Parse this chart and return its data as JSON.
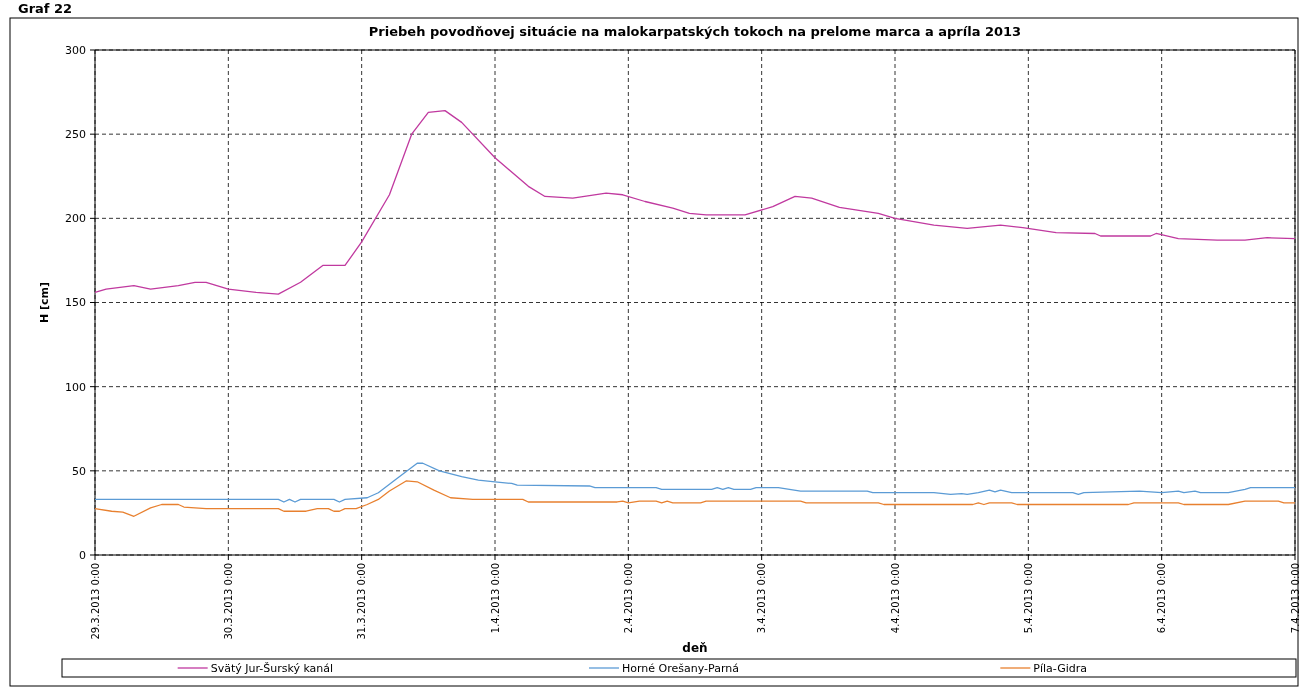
{
  "chart_data": {
    "type": "line",
    "title": "Priebeh povodňovej situácie na malokarpatských tokoch na prelome marca a apríla 2013",
    "xlabel": "deň",
    "ylabel": "H [cm]",
    "annotations": [
      "Graf 22"
    ],
    "xlim": [
      "2013-03-29T00:00",
      "2013-04-07T00:00"
    ],
    "ylim": [
      0,
      300
    ],
    "yticks": [
      0,
      50,
      100,
      150,
      200,
      250,
      300
    ],
    "xticks": [
      {
        "value": "2013-03-29T00:00",
        "label": "29.3.2013 0:00"
      },
      {
        "value": "2013-03-30T00:00",
        "label": "30.3.2013 0:00"
      },
      {
        "value": "2013-03-31T00:00",
        "label": "31.3.2013 0:00"
      },
      {
        "value": "2013-04-01T00:00",
        "label": "1.4.2013 0:00"
      },
      {
        "value": "2013-04-02T00:00",
        "label": "2.4.2013 0:00"
      },
      {
        "value": "2013-04-03T00:00",
        "label": "3.4.2013 0:00"
      },
      {
        "value": "2013-04-04T00:00",
        "label": "4.4.2013 0:00"
      },
      {
        "value": "2013-04-05T00:00",
        "label": "5.4.2013 0:00"
      },
      {
        "value": "2013-04-06T00:00",
        "label": "6.4.2013 0:00"
      },
      {
        "value": "2013-04-07T00:00",
        "label": "7.4.2013 0:00"
      }
    ],
    "grid": true,
    "legend": "bottom",
    "series": [
      {
        "name": "Svätý Jur-Šurský kanál",
        "color": "#c0399f",
        "x": [
          "2013-03-29T00:00",
          "2013-03-29T02:00",
          "2013-03-29T07:00",
          "2013-03-29T10:00",
          "2013-03-29T15:00",
          "2013-03-29T18:00",
          "2013-03-29T20:00",
          "2013-03-30T00:00",
          "2013-03-30T05:00",
          "2013-03-30T09:00",
          "2013-03-30T13:00",
          "2013-03-30T17:00",
          "2013-03-30T21:00",
          "2013-03-31T00:00",
          "2013-03-31T05:00",
          "2013-03-31T09:00",
          "2013-03-31T12:00",
          "2013-03-31T15:00",
          "2013-03-31T18:00",
          "2013-04-01T00:00",
          "2013-04-01T06:00",
          "2013-04-01T09:00",
          "2013-04-01T14:00",
          "2013-04-01T17:00",
          "2013-04-01T20:00",
          "2013-04-01T23:00",
          "2013-04-02T03:00",
          "2013-04-02T08:00",
          "2013-04-02T11:00",
          "2013-04-02T14:00",
          "2013-04-02T21:00",
          "2013-04-03T02:00",
          "2013-04-03T06:00",
          "2013-04-03T09:00",
          "2013-04-03T14:00",
          "2013-04-03T21:00",
          "2013-04-04T00:00",
          "2013-04-04T07:00",
          "2013-04-04T13:00",
          "2013-04-04T19:00",
          "2013-04-04T23:00",
          "2013-04-05T05:00",
          "2013-04-05T12:00",
          "2013-04-05T13:00",
          "2013-04-05T22:00",
          "2013-04-05T23:00",
          "2013-04-06T03:00",
          "2013-04-06T10:00",
          "2013-04-06T15:00",
          "2013-04-06T19:00",
          "2013-04-07T00:00"
        ],
        "values": [
          156,
          158,
          160,
          158,
          160,
          162,
          162,
          158,
          156,
          155,
          162,
          172,
          172,
          186,
          214,
          250,
          263,
          264,
          257,
          236,
          219,
          213,
          212,
          213.5,
          215,
          214,
          210,
          206,
          203,
          202,
          202,
          207,
          213,
          212,
          206.5,
          203,
          200,
          196,
          194,
          196,
          194.5,
          191.5,
          191,
          189.5,
          189.5,
          191,
          188,
          187,
          187,
          188.5,
          188
        ]
      },
      {
        "name": "Horné Orešany-Parná",
        "color": "#5b9bd5",
        "x": [
          "2013-03-29T00:00",
          "2013-03-30T09:00",
          "2013-03-30T10:00",
          "2013-03-30T11:00",
          "2013-03-30T12:00",
          "2013-03-30T13:00",
          "2013-03-30T19:00",
          "2013-03-30T20:00",
          "2013-03-30T21:00",
          "2013-03-31T01:00",
          "2013-03-31T03:00",
          "2013-03-31T06:00",
          "2013-03-31T10:00",
          "2013-03-31T11:00",
          "2013-03-31T14:00",
          "2013-03-31T18:00",
          "2013-03-31T21:00",
          "2013-04-01T00:00",
          "2013-04-01T03:00",
          "2013-04-01T04:00",
          "2013-04-01T17:00",
          "2013-04-01T18:00",
          "2013-04-02T05:00",
          "2013-04-02T06:00",
          "2013-04-02T15:00",
          "2013-04-02T16:00",
          "2013-04-02T17:00",
          "2013-04-02T18:00",
          "2013-04-02T19:00",
          "2013-04-02T22:00",
          "2013-04-02T23:00",
          "2013-04-03T03:00",
          "2013-04-03T07:00",
          "2013-04-03T19:00",
          "2013-04-03T20:00",
          "2013-04-04T07:00",
          "2013-04-04T10:00",
          "2013-04-04T12:00",
          "2013-04-04T13:00",
          "2013-04-04T15:00",
          "2013-04-04T17:00",
          "2013-04-04T18:00",
          "2013-04-04T19:00",
          "2013-04-04T21:00",
          "2013-04-05T08:00",
          "2013-04-05T09:00",
          "2013-04-05T10:00",
          "2013-04-05T20:00",
          "2013-04-06T00:00",
          "2013-04-06T03:00",
          "2013-04-06T04:00",
          "2013-04-06T06:00",
          "2013-04-06T07:00",
          "2013-04-06T12:00",
          "2013-04-06T15:00",
          "2013-04-06T16:00",
          "2013-04-07T00:00"
        ],
        "values": [
          33,
          33,
          31.5,
          33,
          31.5,
          33,
          33,
          31.5,
          33,
          34,
          37,
          44.5,
          54.5,
          54.5,
          50,
          46.5,
          44.5,
          43.5,
          42.5,
          41.5,
          41,
          40,
          40,
          39,
          39,
          40,
          39,
          40,
          39,
          39,
          40,
          40,
          38,
          38,
          37,
          37,
          36,
          36.5,
          36,
          37,
          38.5,
          37.5,
          38.5,
          37,
          37,
          36,
          37,
          38,
          37,
          38,
          37,
          38,
          37,
          37,
          39,
          40,
          40
        ]
      },
      {
        "name": "Píla-Gidra",
        "color": "#e8802f",
        "x": [
          "2013-03-29T00:00",
          "2013-03-29T03:00",
          "2013-03-29T05:00",
          "2013-03-29T07:00",
          "2013-03-29T10:00",
          "2013-03-29T12:00",
          "2013-03-29T15:00",
          "2013-03-29T16:00",
          "2013-03-29T20:00",
          "2013-03-30T09:00",
          "2013-03-30T10:00",
          "2013-03-30T14:00",
          "2013-03-30T16:00",
          "2013-03-30T18:00",
          "2013-03-30T19:00",
          "2013-03-30T20:00",
          "2013-03-30T21:00",
          "2013-03-30T23:00",
          "2013-03-31T01:00",
          "2013-03-31T03:00",
          "2013-03-31T05:00",
          "2013-03-31T08:00",
          "2013-03-31T10:00",
          "2013-03-31T13:00",
          "2013-03-31T16:00",
          "2013-03-31T20:00",
          "2013-04-01T05:00",
          "2013-04-01T06:00",
          "2013-04-01T22:00",
          "2013-04-01T23:00",
          "2013-04-02T00:00",
          "2013-04-02T02:00",
          "2013-04-02T05:00",
          "2013-04-02T06:00",
          "2013-04-02T07:00",
          "2013-04-02T08:00",
          "2013-04-02T13:00",
          "2013-04-02T14:00",
          "2013-04-03T07:00",
          "2013-04-03T08:00",
          "2013-04-03T21:00",
          "2013-04-03T22:00",
          "2013-04-04T14:00",
          "2013-04-04T15:00",
          "2013-04-04T16:00",
          "2013-04-04T17:00",
          "2013-04-04T21:00",
          "2013-04-04T22:00",
          "2013-04-05T18:00",
          "2013-04-05T19:00",
          "2013-04-06T03:00",
          "2013-04-06T04:00",
          "2013-04-06T12:00",
          "2013-04-06T15:00",
          "2013-04-06T21:00",
          "2013-04-06T22:00",
          "2013-04-07T00:00"
        ],
        "values": [
          27.5,
          26,
          25.5,
          23,
          28,
          30,
          30,
          28.5,
          27.5,
          27.5,
          26,
          26,
          27.5,
          27.5,
          26,
          26,
          27.5,
          27.5,
          30,
          33,
          38,
          44,
          43.5,
          38.5,
          34,
          33,
          33,
          31.5,
          31.5,
          32,
          31,
          32,
          32,
          31,
          32,
          31,
          31,
          32,
          32,
          31,
          31,
          30,
          30,
          31,
          30,
          31,
          31,
          30,
          30,
          31,
          31,
          30,
          30,
          32,
          32,
          31,
          31
        ]
      }
    ]
  }
}
